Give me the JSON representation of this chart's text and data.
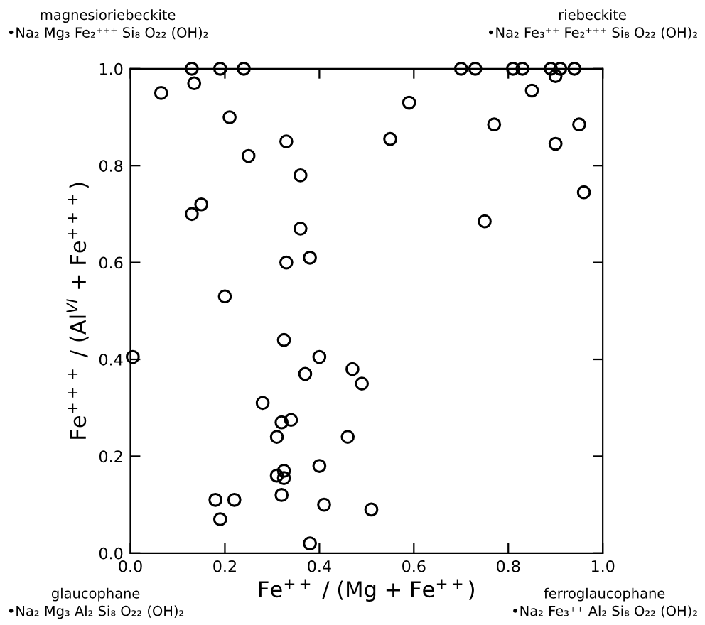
{
  "chart_data": {
    "type": "scatter",
    "xlabel": "Fe$^{++}$ / (Mg + Fe$^{++}$)",
    "ylabel": "Fe$^{+++}$ / (Al$^{VI}$ + Fe$^{+++}$)",
    "xlim": [
      0,
      1
    ],
    "ylim": [
      0,
      1
    ],
    "xticks": [
      {
        "value": 0,
        "label": "0.0"
      },
      0.2,
      0.4,
      0.6,
      0.8,
      {
        "value": 1,
        "label": "1.0"
      }
    ],
    "yticks": [
      {
        "value": 0,
        "label": "0.0"
      },
      0.2,
      0.4,
      0.6,
      0.8,
      {
        "value": 1,
        "label": "1.0"
      }
    ],
    "grid": false,
    "marker": "circle",
    "series": [
      {
        "color": "#000000",
        "x": [
          0.13,
          0.19,
          0.24,
          0.065,
          0.135,
          0.21,
          0.33,
          0.25,
          0.36,
          0.13,
          0.15,
          0.36,
          0.33,
          0.38,
          0.2,
          0.7,
          0.73,
          0.81,
          0.83,
          0.89,
          0.91,
          0.9,
          0.94,
          0.85,
          0.59,
          0.77,
          0.95,
          0.55,
          0.9,
          0.96,
          0.75,
          0.005,
          0.325,
          0.4,
          0.37,
          0.28,
          0.32,
          0.34,
          0.31,
          0.325,
          0.325,
          0.31,
          0.4,
          0.32,
          0.41,
          0.18,
          0.22,
          0.19,
          0.38,
          0.47,
          0.49,
          0.46,
          0.51
        ],
        "values": [
          1.0,
          1.0,
          1.0,
          0.95,
          0.97,
          0.9,
          0.85,
          0.82,
          0.78,
          0.7,
          0.72,
          0.67,
          0.6,
          0.61,
          0.53,
          1.0,
          1.0,
          1.0,
          1.0,
          1.0,
          1.0,
          0.985,
          1.0,
          0.955,
          0.93,
          0.885,
          0.885,
          0.855,
          0.845,
          0.745,
          0.685,
          0.405,
          0.44,
          0.405,
          0.37,
          0.31,
          0.27,
          0.275,
          0.24,
          0.17,
          0.155,
          0.16,
          0.18,
          0.12,
          0.1,
          0.11,
          0.11,
          0.07,
          0.02,
          0.38,
          0.35,
          0.24,
          0.09
        ]
      }
    ],
    "annotations": [
      "magnesioriebeckite\n•Na₂ Mg₃ Fe₂⁺⁺⁺ Si₈ O₂₂ (OH)₂",
      "riebeckite\n•Na₂ Fe₃⁺⁺ Fe₂⁺⁺⁺ Si₈ O₂₂ (OH)₂",
      "glaucophane\n•Na₂ Mg₃ Al₂ Si₈ O₂₂ (OH)₂",
      "ferroglaucophane\n•Na₂ Fe₃⁺⁺ Al₂ Si₈ O₂₂ (OH)₂"
    ]
  }
}
